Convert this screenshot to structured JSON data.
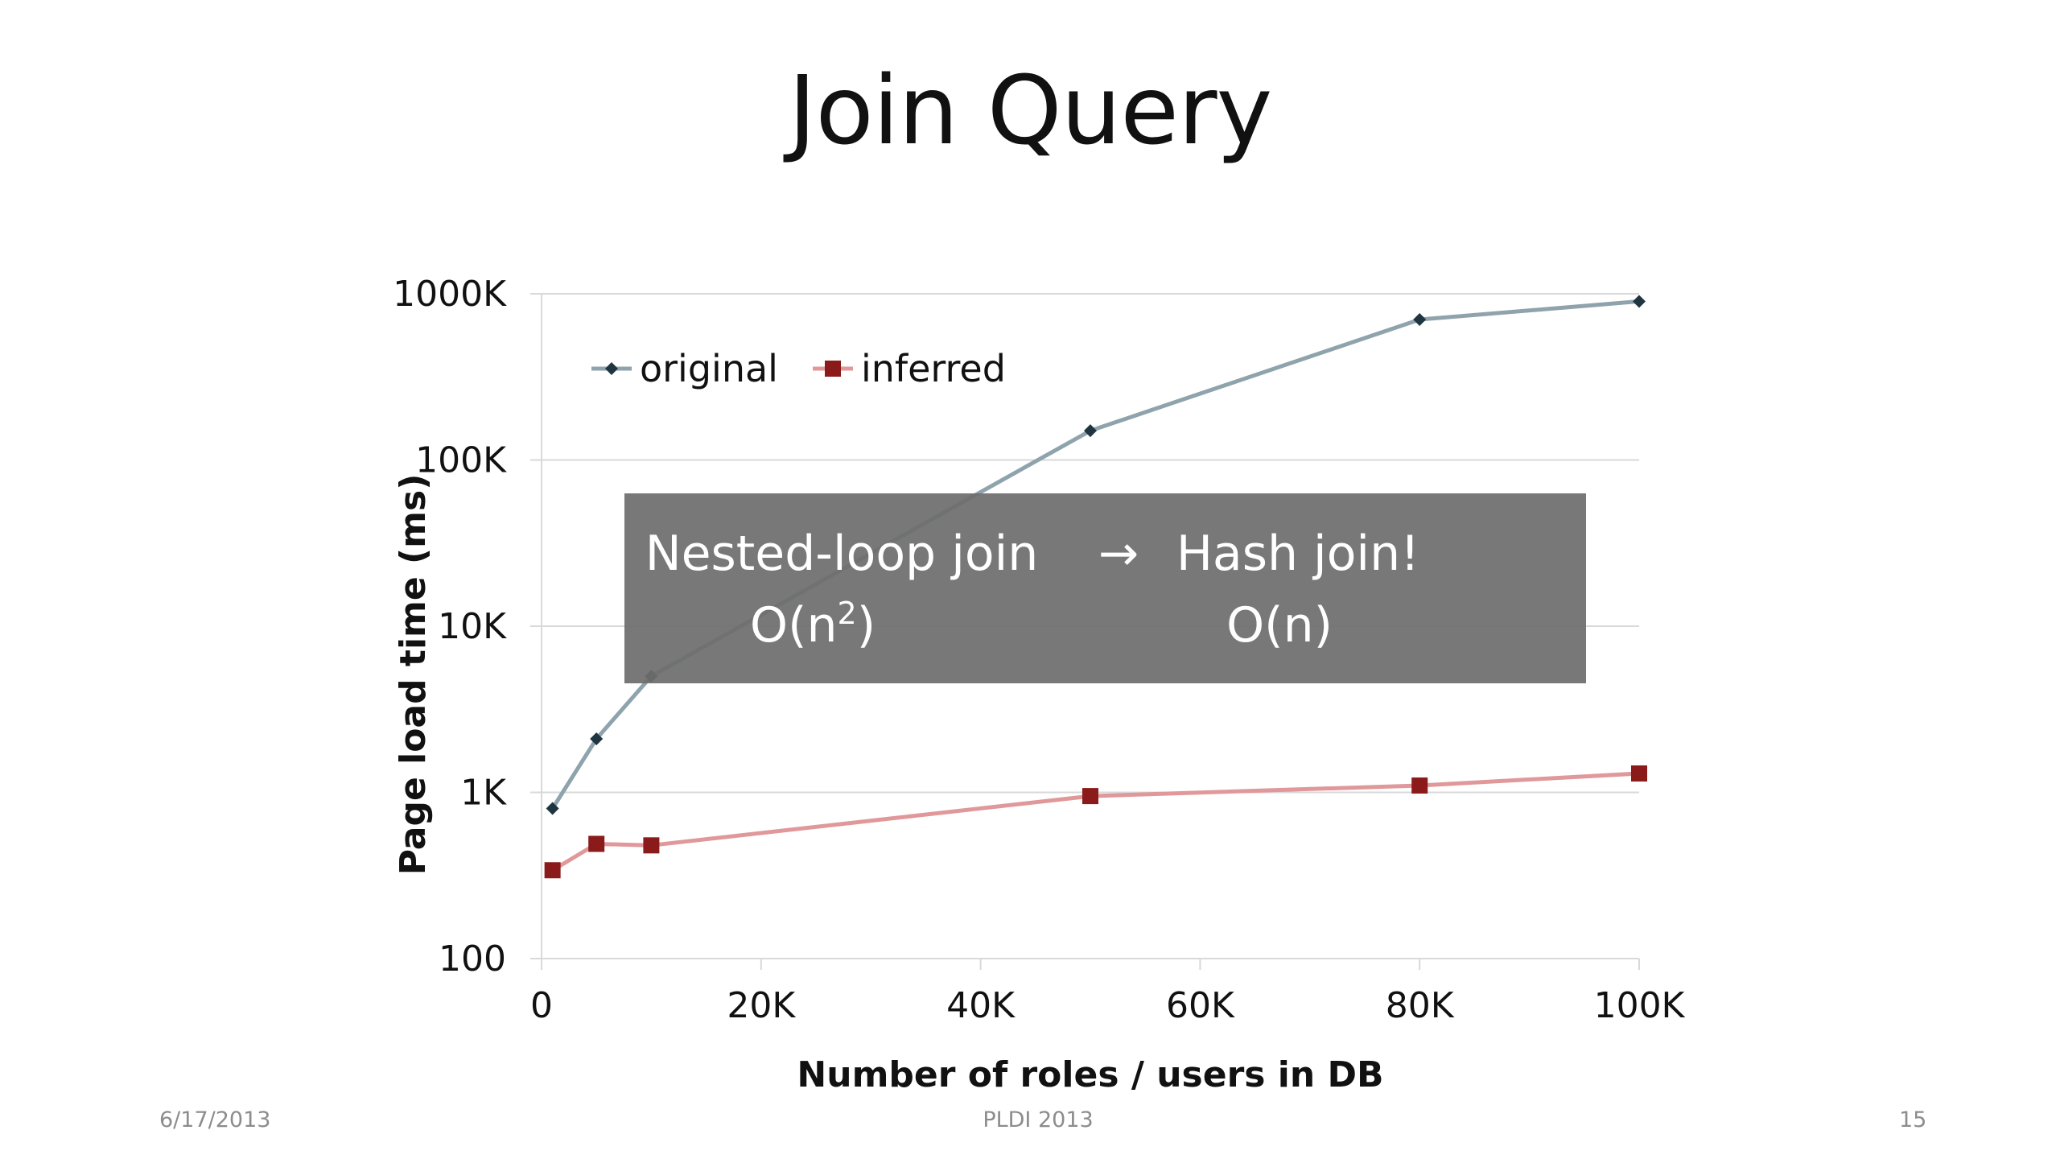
{
  "slide": {
    "title": "Join Query",
    "footer": {
      "date": "6/17/2013",
      "conference": "PLDI 2013",
      "page": "15"
    }
  },
  "annotation": {
    "left_line1": "Nested-loop join",
    "left_line2_base": "O(n",
    "left_line2_sup": "2",
    "left_line2_end": ")",
    "arrow": "→",
    "right_line1": "Hash join!",
    "right_line2": "O(n)",
    "box_color": "#6e6e6e"
  },
  "chart_data": {
    "type": "line",
    "title": "",
    "xlabel": "Number of roles / users in DB",
    "ylabel": "Page load time (ms)",
    "xlim": [
      0,
      100000
    ],
    "ylim": [
      100,
      1000000
    ],
    "yscale": "log",
    "xticks": [
      {
        "value": 0,
        "label": "0"
      },
      {
        "value": 20000,
        "label": "20K"
      },
      {
        "value": 40000,
        "label": "40K"
      },
      {
        "value": 60000,
        "label": "60K"
      },
      {
        "value": 80000,
        "label": "80K"
      },
      {
        "value": 100000,
        "label": "100K"
      }
    ],
    "yticks": [
      {
        "value": 100,
        "label": "100"
      },
      {
        "value": 1000,
        "label": "1K"
      },
      {
        "value": 10000,
        "label": "10K"
      },
      {
        "value": 100000,
        "label": "100K"
      },
      {
        "value": 1000000,
        "label": "1000K"
      }
    ],
    "grid": "horizontal",
    "legend_position": "top-left",
    "series": [
      {
        "name": "original",
        "color": "#8fa3ad",
        "marker": "diamond",
        "marker_color": "#1f3540",
        "points": [
          {
            "x": 1000,
            "y": 800
          },
          {
            "x": 5000,
            "y": 2100
          },
          {
            "x": 10000,
            "y": 5000
          },
          {
            "x": 50000,
            "y": 150000
          },
          {
            "x": 80000,
            "y": 700000
          },
          {
            "x": 100000,
            "y": 900000
          }
        ]
      },
      {
        "name": "inferred",
        "color": "#e0989a",
        "marker": "square",
        "marker_color": "#8b1a1a",
        "points": [
          {
            "x": 1000,
            "y": 340
          },
          {
            "x": 5000,
            "y": 490
          },
          {
            "x": 10000,
            "y": 480
          },
          {
            "x": 50000,
            "y": 950
          },
          {
            "x": 80000,
            "y": 1100
          },
          {
            "x": 100000,
            "y": 1300
          }
        ]
      }
    ]
  }
}
